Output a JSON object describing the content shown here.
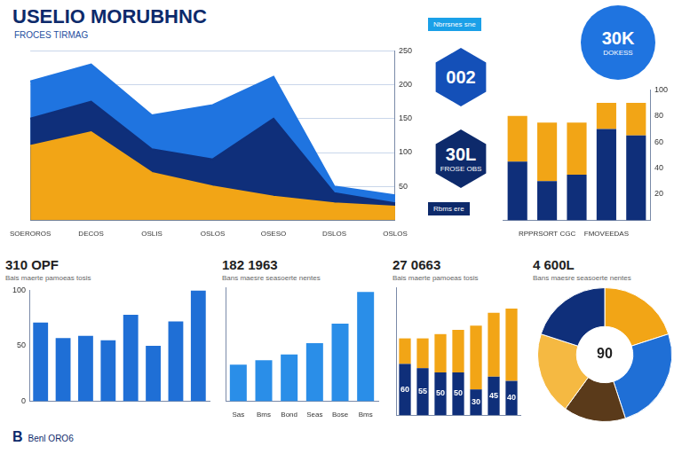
{
  "header": {
    "title": "USELIO MORUBHNC",
    "subtitle": "FROCES TIRMAG"
  },
  "tags": [
    "Nbrrsnes sne",
    "Rbms ere"
  ],
  "badges": [
    {
      "label": "002"
    },
    {
      "label": "30L",
      "text": "FROSE OBS"
    },
    {
      "label": "30K",
      "text": "DOKESS"
    }
  ],
  "footer": {
    "label": "B",
    "text": "Benl ORO6"
  },
  "chart_data": [
    {
      "type": "area",
      "categories": [
        "SOEROROS",
        "DECOS",
        "OSLIS",
        "OSLOS",
        "OSESO",
        "DSLOS",
        "OSLOS"
      ],
      "series": [
        {
          "color": "#f2a516",
          "values": [
            110,
            130,
            70,
            50,
            35,
            25,
            20
          ]
        },
        {
          "color": "#0f2f7a",
          "values": [
            150,
            175,
            105,
            90,
            150,
            40,
            25
          ]
        },
        {
          "color": "#1f74e0",
          "values": [
            205,
            230,
            155,
            170,
            212,
            50,
            37
          ]
        }
      ],
      "ylim": [
        0,
        250
      ],
      "yticks": [
        50,
        100,
        150,
        200,
        250
      ],
      "grid": true
    },
    {
      "type": "bar",
      "stacked": true,
      "categories": [
        null,
        "RPPRSORT CGC",
        null,
        "FMOVEEDAS",
        null
      ],
      "series": [
        {
          "color": "#0f2f7a",
          "values": [
            45,
            30,
            35,
            70,
            65
          ]
        },
        {
          "color": "#f2a516",
          "values": [
            35,
            45,
            40,
            20,
            25
          ]
        }
      ],
      "ylim": [
        0,
        100
      ],
      "yticks": [
        20,
        40,
        60,
        80,
        100
      ],
      "grid": false
    },
    {
      "type": "bar",
      "title": "310 OPF",
      "subtitle": "Bais maerte pamoeas tosis",
      "categories": [
        null,
        null,
        null,
        null,
        null,
        null,
        null,
        null
      ],
      "values": [
        71,
        57,
        59,
        55,
        78,
        50,
        72,
        100
      ],
      "color": "#1f6fd6",
      "ylim": [
        0,
        100
      ],
      "yticks": [
        0,
        50,
        100
      ],
      "grid": false
    },
    {
      "type": "bar",
      "title": "182 1963",
      "subtitle": "Bans maesre seasoerte nentes",
      "categories": [
        "Sas",
        "Bms",
        "Bond",
        "Seas",
        "Bose",
        "Bms"
      ],
      "values": [
        32,
        36,
        41,
        51,
        68,
        96
      ],
      "color": "#2a8ee8",
      "ylim": [
        0,
        100
      ],
      "yticks": [],
      "tick_labels": "x",
      "grid": false
    },
    {
      "type": "bar",
      "stacked": true,
      "title": "27 0663",
      "subtitle": "Bais maerte pamoeas tosis",
      "categories": [
        null,
        null,
        null,
        null,
        null,
        null,
        null
      ],
      "series": [
        {
          "color": "#0f2f7a",
          "values": [
            60,
            55,
            50,
            50,
            30,
            45,
            40
          ],
          "data_labels": true
        },
        {
          "color": "#f2a516",
          "values": [
            30,
            35,
            45,
            50,
            75,
            75,
            85
          ]
        }
      ],
      "ylim": [
        0,
        150
      ],
      "yticks": [],
      "tick_labels": false,
      "grid": false
    },
    {
      "type": "doughnut",
      "title": "4 600L",
      "subtitle": "Bans maesre seasoerte nentes",
      "values": [
        20,
        25,
        15,
        20,
        20
      ],
      "colors": [
        "#f2a516",
        "#1f6fd6",
        "#5a3a1a",
        "#f5b942",
        "#0f2f7a"
      ],
      "annotation": "90"
    }
  ]
}
